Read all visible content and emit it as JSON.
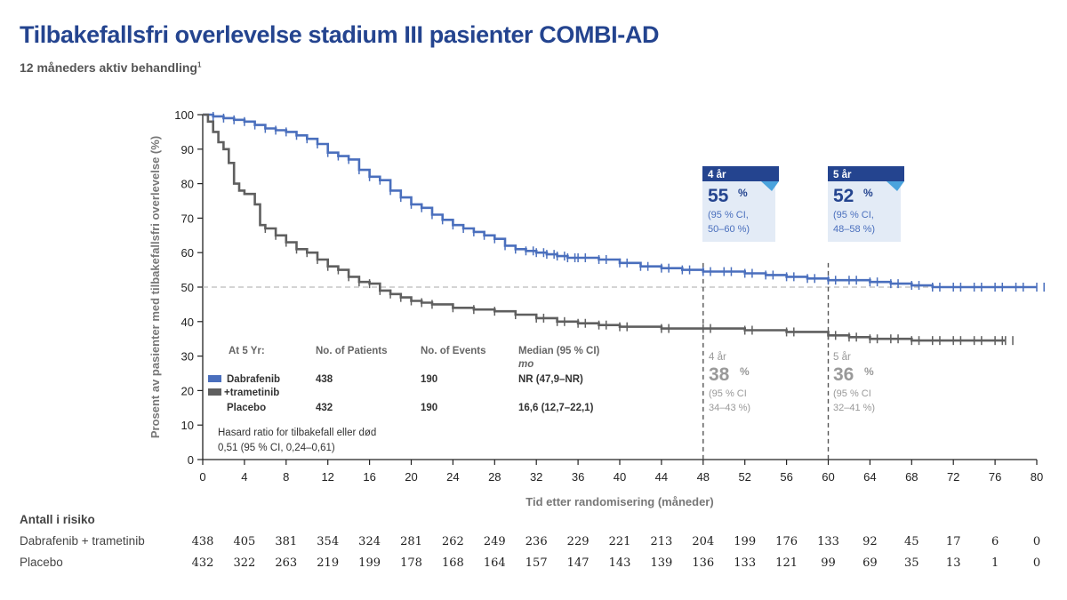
{
  "header": {
    "title": "Tilbakefallsfri overlevelse stadium III pasienter COMBI-AD",
    "subtitle": "12 måneders aktiv behandling",
    "subtitle_ref": "1"
  },
  "chart_data": {
    "type": "line",
    "xlabel": "Tid etter randomisering (måneder)",
    "ylabel": "Prosent av pasienter med tilbakefallsfri overlevelse (%)",
    "xlim": [
      0,
      80
    ],
    "ylim": [
      0,
      100
    ],
    "xticks": [
      0,
      4,
      8,
      12,
      16,
      20,
      24,
      28,
      32,
      36,
      40,
      44,
      48,
      52,
      56,
      60,
      64,
      68,
      72,
      76,
      80
    ],
    "yticks": [
      0,
      10,
      20,
      30,
      40,
      50,
      60,
      70,
      80,
      90,
      100
    ],
    "reference_line_y": 50,
    "vertical_markers": [
      48,
      60
    ],
    "series": [
      {
        "legend": "Dabrafenib +trametinib",
        "color": "#4a6fbd",
        "points": [
          [
            0,
            100
          ],
          [
            1,
            99.5
          ],
          [
            2,
            99
          ],
          [
            3,
            98.5
          ],
          [
            4,
            98
          ],
          [
            5,
            97
          ],
          [
            6,
            96
          ],
          [
            7,
            95.5
          ],
          [
            8,
            95
          ],
          [
            9,
            94
          ],
          [
            10,
            93
          ],
          [
            11,
            91.5
          ],
          [
            12,
            89
          ],
          [
            13,
            88
          ],
          [
            14,
            87
          ],
          [
            15,
            84
          ],
          [
            16,
            82
          ],
          [
            17,
            81
          ],
          [
            18,
            78
          ],
          [
            19,
            76
          ],
          [
            20,
            74
          ],
          [
            21,
            73
          ],
          [
            22,
            71
          ],
          [
            23,
            69.5
          ],
          [
            24,
            68
          ],
          [
            25,
            67
          ],
          [
            26,
            66
          ],
          [
            27,
            65
          ],
          [
            28,
            64
          ],
          [
            29,
            62
          ],
          [
            30,
            61
          ],
          [
            31,
            60.5
          ],
          [
            32,
            60
          ],
          [
            33,
            59.5
          ],
          [
            34,
            59
          ],
          [
            35,
            58.5
          ],
          [
            36,
            58.5
          ],
          [
            38,
            58
          ],
          [
            40,
            57
          ],
          [
            42,
            56
          ],
          [
            44,
            55.5
          ],
          [
            46,
            55
          ],
          [
            48,
            54.5
          ],
          [
            50,
            54.5
          ],
          [
            52,
            54
          ],
          [
            54,
            53.5
          ],
          [
            56,
            53
          ],
          [
            58,
            52.5
          ],
          [
            60,
            52
          ],
          [
            62,
            52
          ],
          [
            64,
            51.5
          ],
          [
            66,
            51
          ],
          [
            68,
            50.5
          ],
          [
            70,
            50
          ],
          [
            72,
            50
          ],
          [
            74,
            50
          ],
          [
            76,
            50
          ],
          [
            78,
            50
          ],
          [
            80,
            50
          ]
        ]
      },
      {
        "legend": "Placebo",
        "color": "#5f5f5f",
        "points": [
          [
            0,
            100
          ],
          [
            0.5,
            98
          ],
          [
            1,
            95
          ],
          [
            1.5,
            92
          ],
          [
            2,
            90
          ],
          [
            2.5,
            86
          ],
          [
            3,
            80
          ],
          [
            3.5,
            78
          ],
          [
            4,
            77
          ],
          [
            5,
            74
          ],
          [
            5.5,
            68
          ],
          [
            6,
            67
          ],
          [
            7,
            65
          ],
          [
            8,
            63
          ],
          [
            9,
            61
          ],
          [
            10,
            60
          ],
          [
            11,
            58
          ],
          [
            12,
            56
          ],
          [
            13,
            55
          ],
          [
            14,
            53
          ],
          [
            15,
            51.5
          ],
          [
            16,
            51
          ],
          [
            17,
            49
          ],
          [
            18,
            48
          ],
          [
            19,
            47
          ],
          [
            20,
            46
          ],
          [
            21,
            45.5
          ],
          [
            22,
            45
          ],
          [
            24,
            44
          ],
          [
            26,
            43.5
          ],
          [
            28,
            43
          ],
          [
            30,
            42
          ],
          [
            32,
            41
          ],
          [
            34,
            40
          ],
          [
            36,
            39.5
          ],
          [
            38,
            39
          ],
          [
            40,
            38.5
          ],
          [
            44,
            38
          ],
          [
            48,
            38
          ],
          [
            52,
            37.5
          ],
          [
            56,
            37
          ],
          [
            60,
            36
          ],
          [
            62,
            35.5
          ],
          [
            64,
            35
          ],
          [
            66,
            35
          ],
          [
            68,
            34.5
          ],
          [
            70,
            34.5
          ],
          [
            72,
            34.5
          ],
          [
            74,
            34.5
          ],
          [
            76,
            34.5
          ],
          [
            77,
            34.5
          ]
        ]
      }
    ],
    "callouts": [
      {
        "header": "4 år",
        "value": "55",
        "unit": "%",
        "ci_line1": "(95 % CI,",
        "ci_line2": "50–60 %)"
      },
      {
        "header": "5 år",
        "value": "52",
        "unit": "%",
        "ci_line1": "(95 % CI,",
        "ci_line2": "48–58 %)"
      }
    ],
    "placebo_labels": [
      {
        "header": "4 år",
        "value": "38",
        "unit": "%",
        "ci_line1": "(95 % CI",
        "ci_line2": "34–43 %)"
      },
      {
        "header": "5 år",
        "value": "36",
        "unit": "%",
        "ci_line1": "(95 % CI",
        "ci_line2": "32–41 %)"
      }
    ]
  },
  "stats_table": {
    "headers": [
      "At 5 Yr:",
      "No. of Patients",
      "No. of Events",
      "Median (95 % CI)"
    ],
    "median_unit": "mo",
    "rows": [
      {
        "label_line1": "Dabrafenib",
        "label_line2": "+trametinib",
        "patients": "438",
        "events": "190",
        "median": "NR (47,9–NR)",
        "color": "#4a6fbd"
      },
      {
        "label_line1": "Placebo",
        "label_line2": "",
        "patients": "432",
        "events": "190",
        "median": "16,6 (12,7–22,1)",
        "color": "#5f5f5f"
      }
    ],
    "hazard_line1": "Hasard ratio for tilbakefall eller død",
    "hazard_line2": "0,51 (95 % CI, 0,24–0,61)"
  },
  "risk_table": {
    "title": "Antall i risiko",
    "rows": [
      {
        "label": "Dabrafenib + trametinib",
        "values": [
          "438",
          "405",
          "381",
          "354",
          "324",
          "281",
          "262",
          "249",
          "236",
          "229",
          "221",
          "213",
          "204",
          "199",
          "176",
          "133",
          "92",
          "45",
          "17",
          "6",
          "0"
        ]
      },
      {
        "label": "Placebo",
        "values": [
          "432",
          "322",
          "263",
          "219",
          "199",
          "178",
          "168",
          "164",
          "157",
          "147",
          "143",
          "139",
          "136",
          "133",
          "121",
          "99",
          "69",
          "35",
          "13",
          "1",
          "0"
        ]
      }
    ]
  }
}
